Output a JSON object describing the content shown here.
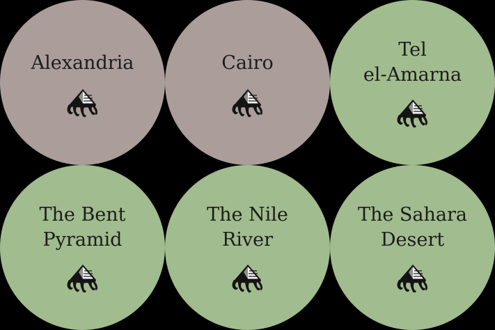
{
  "colors": {
    "background": "#000000",
    "city": "#ab9e9a",
    "site": "#a1bc8e",
    "text": "#1c1c1c",
    "symbol_dark": "#141414",
    "symbol_light": "#f4f4f4"
  },
  "tokens": [
    {
      "lines": [
        "Alexandria"
      ],
      "kind": "city",
      "icon": "pyramid-tentacle-icon"
    },
    {
      "lines": [
        "Cairo"
      ],
      "kind": "city",
      "icon": "pyramid-tentacle-icon"
    },
    {
      "lines": [
        "Tel",
        "el-Amarna"
      ],
      "kind": "site",
      "icon": "pyramid-tentacle-icon"
    },
    {
      "lines": [
        "The Bent",
        "Pyramid"
      ],
      "kind": "site",
      "icon": "pyramid-tentacle-icon"
    },
    {
      "lines": [
        "The Nile",
        "River"
      ],
      "kind": "site",
      "icon": "pyramid-tentacle-icon"
    },
    {
      "lines": [
        "The Sahara",
        "Desert"
      ],
      "kind": "site",
      "icon": "pyramid-tentacle-icon"
    }
  ]
}
